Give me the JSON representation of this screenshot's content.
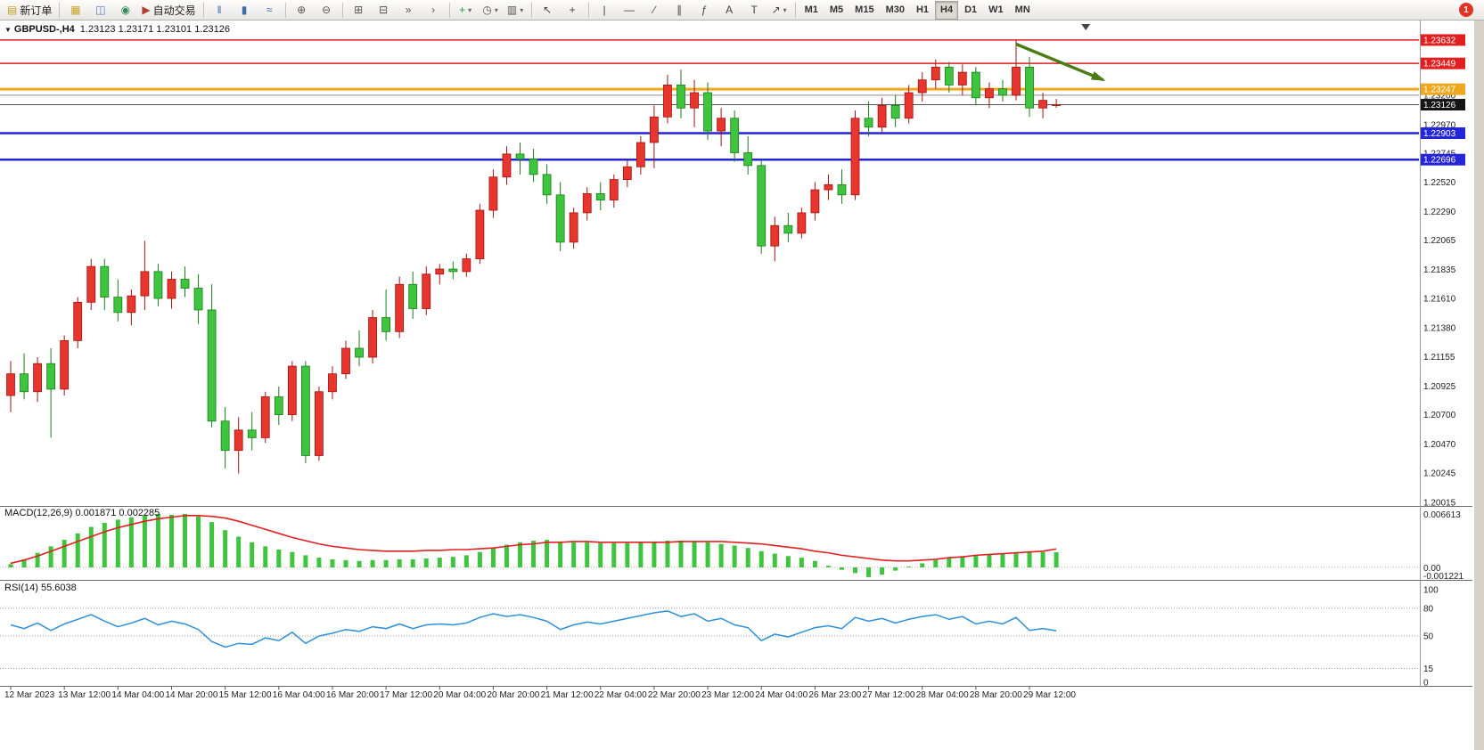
{
  "window": {
    "notification_count": "1"
  },
  "icons": {
    "caret": "▾",
    "expander": "▼"
  },
  "toolbar": {
    "groups": [
      {
        "items": [
          {
            "name": "new-order-button",
            "glyph": "▤",
            "color": "#c9a227",
            "label": "新订单"
          }
        ]
      },
      {
        "items": [
          {
            "name": "charts-button",
            "glyph": "▦",
            "color": "#c9a227"
          },
          {
            "name": "profiles-button",
            "glyph": "◫",
            "color": "#4a7ab5"
          },
          {
            "name": "market-watch-button",
            "glyph": "◉",
            "color": "#2e8b57"
          },
          {
            "name": "auto-trading-button",
            "glyph": "▶",
            "color": "#b3402e",
            "label": "自动交易"
          }
        ]
      },
      {
        "items": [
          {
            "name": "bar-chart-button",
            "glyph": "‖",
            "color": "#3a6ea5"
          },
          {
            "name": "candlestick-chart-button",
            "glyph": "▮",
            "color": "#3a6ea5"
          },
          {
            "name": "line-chart-button",
            "glyph": "≈",
            "color": "#3a6ea5"
          }
        ]
      },
      {
        "items": [
          {
            "name": "zoom-in-button",
            "glyph": "⊕",
            "color": "#555555"
          },
          {
            "name": "zoom-out-button",
            "glyph": "⊖",
            "color": "#555555"
          }
        ]
      },
      {
        "items": [
          {
            "name": "tile-windows-button",
            "glyph": "⊞",
            "color": "#555555"
          },
          {
            "name": "cascade-windows-button",
            "glyph": "⊟",
            "color": "#555555"
          },
          {
            "name": "auto-scroll-button",
            "glyph": "»",
            "color": "#555555"
          },
          {
            "name": "chart-shift-button",
            "glyph": "›",
            "color": "#555555"
          }
        ]
      },
      {
        "items": [
          {
            "name": "indicators-button",
            "glyph": "+",
            "color": "#2f9e44",
            "caret": true
          },
          {
            "name": "periods-button",
            "glyph": "◷",
            "color": "#555555",
            "caret": true
          },
          {
            "name": "templates-button",
            "glyph": "▥",
            "color": "#555555",
            "caret": true
          }
        ]
      },
      {
        "items": [
          {
            "name": "cursor-button",
            "glyph": "↖",
            "color": "#444444"
          },
          {
            "name": "crosshair-button",
            "glyph": "+",
            "color": "#444444"
          }
        ]
      },
      {
        "items": [
          {
            "name": "vertical-line-button",
            "glyph": "|",
            "color": "#444444"
          },
          {
            "name": "horizontal-line-button",
            "glyph": "—",
            "color": "#444444"
          },
          {
            "name": "trendline-button",
            "glyph": "∕",
            "color": "#444444"
          },
          {
            "name": "channel-button",
            "glyph": "∥",
            "color": "#444444"
          },
          {
            "name": "fibonacci-button",
            "glyph": "ƒ",
            "color": "#444444"
          },
          {
            "name": "text-button",
            "glyph": "A",
            "color": "#444444"
          },
          {
            "name": "text-label-button",
            "glyph": "T",
            "color": "#444444"
          },
          {
            "name": "arrows-button",
            "glyph": "↗",
            "color": "#444444",
            "caret": true
          }
        ]
      }
    ],
    "timeframes": {
      "labels": [
        "M1",
        "M5",
        "M15",
        "M30",
        "H1",
        "H4",
        "D1",
        "W1",
        "MN"
      ],
      "active": "H4"
    }
  },
  "chart_header": {
    "symbol_period": "GBPUSD-,H4",
    "ohlc": "1.23123 1.23171 1.23101 1.23126"
  },
  "colors": {
    "up": "#e8362e",
    "down": "#3ec43e",
    "up_stroke": "#9e1410",
    "down_stroke": "#1b7e1b",
    "macd_hist": "#3ec43e",
    "macd_signal": "#e02020",
    "rsi": "#2e8fd8",
    "arrow": "#4c7c1a"
  },
  "chart_data": {
    "type": "candlestick",
    "title": "GBPUSD-,H4",
    "current": {
      "open": "1.23123",
      "high": "1.23171",
      "low": "1.23101",
      "close": "1.23126"
    },
    "ylim": [
      1.2,
      1.2375
    ],
    "shift_marker_index": 80.2,
    "price_axis_ticks": [
      "1.23200",
      "1.22970",
      "1.22745",
      "1.22520",
      "1.22290",
      "1.22065",
      "1.21835",
      "1.21610",
      "1.21380",
      "1.21155",
      "1.20925",
      "1.20700",
      "1.20470",
      "1.20245",
      "1.20015"
    ],
    "price_lines": [
      {
        "price": 1.23632,
        "color": "#e02020",
        "width": 1.5,
        "badge_label": "1.23632",
        "badge_color": "#e02020"
      },
      {
        "price": 1.23449,
        "color": "#e02020",
        "width": 1.5,
        "badge_label": "1.23449",
        "badge_color": "#e02020"
      },
      {
        "price": 1.23247,
        "color": "#efa71d",
        "width": 3,
        "badge_label": "1.23247",
        "badge_color": "#efa71d"
      },
      {
        "price": 1.232,
        "color": "#8a8a8a",
        "width": 1
      },
      {
        "price": 1.23126,
        "color": "#555555",
        "width": 1,
        "badge_label": "1.23126",
        "badge_color": "#151515"
      },
      {
        "price": 1.22903,
        "color": "#2424d8",
        "width": 2.5,
        "badge_label": "1.22903",
        "badge_color": "#2424d8"
      },
      {
        "price": 1.22696,
        "color": "#2424d8",
        "width": 2.5,
        "badge_label": "1.22696",
        "badge_color": "#2424d8"
      }
    ],
    "annotation_arrow": {
      "from": [
        75,
        1.236
      ],
      "to": [
        81.5,
        1.2332
      ]
    },
    "time_labels": [
      "12 Mar 2023",
      "13 Mar 12:00",
      "14 Mar 04:00",
      "14 Mar 20:00",
      "15 Mar 12:00",
      "16 Mar 04:00",
      "16 Mar 20:00",
      "17 Mar 12:00",
      "20 Mar 04:00",
      "20 Mar 20:00",
      "21 Mar 12:00",
      "22 Mar 04:00",
      "22 Mar 20:00",
      "23 Mar 12:00",
      "24 Mar 04:00",
      "26 Mar 23:00",
      "27 Mar 12:00",
      "28 Mar 04:00",
      "28 Mar 20:00",
      "29 Mar 12:00"
    ],
    "candles_ohlc": [
      [
        1.2085,
        1.2112,
        1.2072,
        1.2102
      ],
      [
        1.2102,
        1.2118,
        1.2082,
        1.2088
      ],
      [
        1.2088,
        1.2115,
        1.208,
        1.211
      ],
      [
        1.211,
        1.2122,
        1.2052,
        1.209
      ],
      [
        1.209,
        1.2132,
        1.2085,
        1.2128
      ],
      [
        1.2128,
        1.2162,
        1.2122,
        1.2158
      ],
      [
        1.2158,
        1.2192,
        1.2152,
        1.2186
      ],
      [
        1.2186,
        1.2192,
        1.2152,
        1.2162
      ],
      [
        1.2162,
        1.2176,
        1.2143,
        1.215
      ],
      [
        1.215,
        1.2168,
        1.214,
        1.2163
      ],
      [
        1.2163,
        1.2206,
        1.2152,
        1.2182
      ],
      [
        1.2182,
        1.2188,
        1.2155,
        1.2161
      ],
      [
        1.2161,
        1.2182,
        1.2153,
        1.2176
      ],
      [
        1.2176,
        1.2186,
        1.2162,
        1.2169
      ],
      [
        1.2169,
        1.218,
        1.2141,
        1.2152
      ],
      [
        1.2152,
        1.2172,
        1.206,
        1.2065
      ],
      [
        1.2065,
        1.2076,
        1.2028,
        1.2042
      ],
      [
        1.2042,
        1.2068,
        1.2024,
        1.2058
      ],
      [
        1.2058,
        1.2072,
        1.2042,
        1.2052
      ],
      [
        1.2052,
        1.2088,
        1.2048,
        1.2084
      ],
      [
        1.2084,
        1.2092,
        1.2062,
        1.207
      ],
      [
        1.207,
        1.2112,
        1.2065,
        1.2108
      ],
      [
        1.2108,
        1.2112,
        1.2032,
        1.2038
      ],
      [
        1.2038,
        1.2092,
        1.2034,
        1.2088
      ],
      [
        1.2088,
        1.2108,
        1.2082,
        1.2102
      ],
      [
        1.2102,
        1.2128,
        1.2098,
        1.2122
      ],
      [
        1.2122,
        1.2136,
        1.2108,
        1.2115
      ],
      [
        1.2115,
        1.2152,
        1.211,
        1.2146
      ],
      [
        1.2146,
        1.2168,
        1.2128,
        1.2135
      ],
      [
        1.2135,
        1.2178,
        1.213,
        1.2172
      ],
      [
        1.2172,
        1.2182,
        1.2145,
        1.2153
      ],
      [
        1.2153,
        1.2186,
        1.2148,
        1.218
      ],
      [
        1.218,
        1.2188,
        1.2172,
        1.2184
      ],
      [
        1.2184,
        1.219,
        1.2176,
        1.2182
      ],
      [
        1.2182,
        1.2196,
        1.2178,
        1.2192
      ],
      [
        1.2192,
        1.2235,
        1.2188,
        1.223
      ],
      [
        1.223,
        1.2262,
        1.2224,
        1.2256
      ],
      [
        1.2256,
        1.228,
        1.225,
        1.2274
      ],
      [
        1.2274,
        1.2283,
        1.2258,
        1.227
      ],
      [
        1.227,
        1.2278,
        1.2252,
        1.2258
      ],
      [
        1.2258,
        1.2266,
        1.2235,
        1.2242
      ],
      [
        1.2242,
        1.2252,
        1.2198,
        1.2205
      ],
      [
        1.2205,
        1.2232,
        1.22,
        1.2228
      ],
      [
        1.2228,
        1.2248,
        1.2222,
        1.2243
      ],
      [
        1.2243,
        1.2252,
        1.223,
        1.2238
      ],
      [
        1.2238,
        1.2258,
        1.2232,
        1.2254
      ],
      [
        1.2254,
        1.227,
        1.2248,
        1.2264
      ],
      [
        1.2264,
        1.2288,
        1.2258,
        1.2283
      ],
      [
        1.2283,
        1.2312,
        1.2263,
        1.2303
      ],
      [
        1.2303,
        1.2336,
        1.2298,
        1.2328
      ],
      [
        1.2328,
        1.234,
        1.2302,
        1.231
      ],
      [
        1.231,
        1.2332,
        1.2295,
        1.2322
      ],
      [
        1.2322,
        1.233,
        1.2285,
        1.2292
      ],
      [
        1.2292,
        1.231,
        1.228,
        1.2302
      ],
      [
        1.2302,
        1.2308,
        1.2268,
        1.2275
      ],
      [
        1.2275,
        1.2288,
        1.2258,
        1.2265
      ],
      [
        1.2265,
        1.227,
        1.2196,
        1.2202
      ],
      [
        1.2202,
        1.2225,
        1.219,
        1.2218
      ],
      [
        1.2218,
        1.2228,
        1.2205,
        1.2212
      ],
      [
        1.2212,
        1.2232,
        1.2208,
        1.2228
      ],
      [
        1.2228,
        1.2252,
        1.2222,
        1.2246
      ],
      [
        1.2246,
        1.2258,
        1.2238,
        1.225
      ],
      [
        1.225,
        1.2262,
        1.2235,
        1.2242
      ],
      [
        1.2242,
        1.2308,
        1.2238,
        1.2302
      ],
      [
        1.2302,
        1.2315,
        1.2288,
        1.2295
      ],
      [
        1.2295,
        1.2318,
        1.229,
        1.2312
      ],
      [
        1.2312,
        1.232,
        1.2295,
        1.2302
      ],
      [
        1.2302,
        1.2328,
        1.2298,
        1.2322
      ],
      [
        1.2322,
        1.2338,
        1.2315,
        1.2332
      ],
      [
        1.2332,
        1.2348,
        1.2325,
        1.2342
      ],
      [
        1.2342,
        1.2346,
        1.2322,
        1.2328
      ],
      [
        1.2328,
        1.2344,
        1.232,
        1.2338
      ],
      [
        1.2338,
        1.2342,
        1.2312,
        1.2318
      ],
      [
        1.2318,
        1.233,
        1.231,
        1.2325
      ],
      [
        1.2325,
        1.2332,
        1.2315,
        1.232
      ],
      [
        1.232,
        1.2363,
        1.2316,
        1.2342
      ],
      [
        1.2342,
        1.235,
        1.2303,
        1.231
      ],
      [
        1.231,
        1.2322,
        1.2302,
        1.2316
      ],
      [
        1.23123,
        1.23171,
        1.23101,
        1.23126
      ]
    ],
    "sub_charts": [
      {
        "type": "macd-histogram",
        "label": "MACD(12,26,9) 0.001871 0.002285",
        "axis_ticks": [
          "0.006613",
          "0.00",
          "-0.001221"
        ],
        "ylim": [
          -0.001221,
          0.006613
        ],
        "values": [
          0.0004,
          0.001,
          0.0018,
          0.0026,
          0.0034,
          0.0042,
          0.005,
          0.0055,
          0.0059,
          0.0062,
          0.0064,
          0.0066,
          0.0065,
          0.0066,
          0.0063,
          0.0056,
          0.0046,
          0.0038,
          0.0031,
          0.0026,
          0.0022,
          0.0019,
          0.0015,
          0.0012,
          0.001,
          0.0009,
          0.0008,
          0.0009,
          0.0009,
          0.001,
          0.001,
          0.0011,
          0.0012,
          0.0013,
          0.0015,
          0.0019,
          0.0024,
          0.0028,
          0.0031,
          0.0033,
          0.0034,
          0.0032,
          0.0031,
          0.0031,
          0.003,
          0.003,
          0.003,
          0.0031,
          0.0032,
          0.0033,
          0.0033,
          0.0032,
          0.0031,
          0.0029,
          0.0027,
          0.0024,
          0.002,
          0.0017,
          0.0014,
          0.0012,
          0.0008,
          0.0002,
          -0.0003,
          -0.0007,
          -0.0012,
          -0.0009,
          -0.0004,
          0.0001,
          0.0005,
          0.0009,
          0.0012,
          0.0014,
          0.0015,
          0.0016,
          0.0017,
          0.0019,
          0.002,
          0.0019,
          0.001871
        ],
        "signal": [
          0.0005,
          0.0009,
          0.0014,
          0.002,
          0.0026,
          0.0032,
          0.0038,
          0.0044,
          0.0049,
          0.0053,
          0.0057,
          0.006,
          0.0062,
          0.0064,
          0.0064,
          0.0063,
          0.0061,
          0.0057,
          0.0052,
          0.0047,
          0.0042,
          0.0037,
          0.0033,
          0.0029,
          0.0026,
          0.0024,
          0.0022,
          0.0021,
          0.002,
          0.002,
          0.002,
          0.0021,
          0.0021,
          0.0022,
          0.0022,
          0.0023,
          0.0024,
          0.0026,
          0.0028,
          0.0029,
          0.0031,
          0.0031,
          0.0032,
          0.0032,
          0.0031,
          0.0031,
          0.0031,
          0.0031,
          0.0031,
          0.0031,
          0.0032,
          0.0032,
          0.0032,
          0.0032,
          0.0031,
          0.003,
          0.0029,
          0.0027,
          0.0025,
          0.0023,
          0.002,
          0.0018,
          0.0015,
          0.0013,
          0.0011,
          0.0009,
          0.0008,
          0.0008,
          0.0009,
          0.001,
          0.0012,
          0.0013,
          0.0015,
          0.0016,
          0.0017,
          0.0018,
          0.0019,
          0.002,
          0.002285
        ]
      },
      {
        "type": "line",
        "label": "RSI(14) 55.6038",
        "axis_ticks": [
          "100",
          "80",
          "50",
          "15",
          "0"
        ],
        "levels": [
          80,
          50,
          15
        ],
        "ylim": [
          0,
          100
        ],
        "values": [
          62,
          58,
          64,
          56,
          63,
          68,
          73,
          66,
          60,
          64,
          69,
          62,
          66,
          63,
          57,
          44,
          38,
          42,
          41,
          48,
          45,
          54,
          42,
          50,
          53,
          57,
          55,
          60,
          58,
          63,
          58,
          62,
          63,
          62,
          64,
          70,
          74,
          71,
          73,
          70,
          66,
          57,
          62,
          65,
          63,
          66,
          69,
          72,
          75,
          77,
          71,
          74,
          66,
          69,
          62,
          59,
          45,
          52,
          49,
          54,
          59,
          61,
          58,
          70,
          66,
          69,
          64,
          68,
          71,
          73,
          68,
          71,
          63,
          66,
          63,
          70,
          56,
          58,
          55.6
        ]
      }
    ]
  }
}
